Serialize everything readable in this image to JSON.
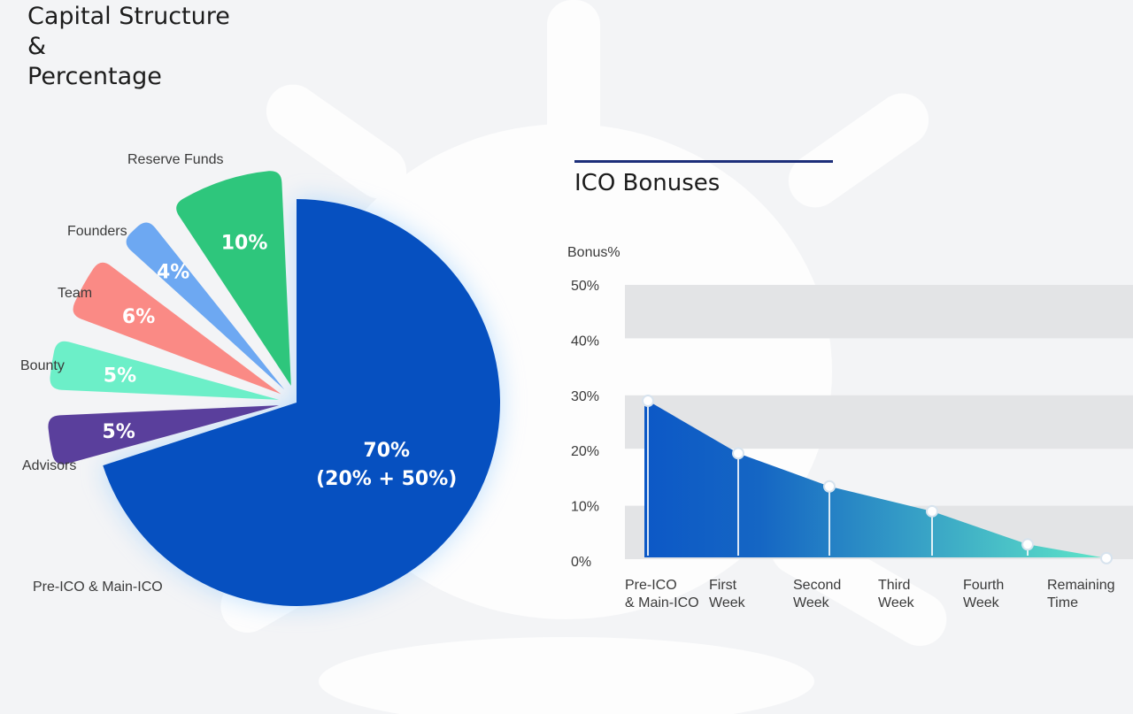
{
  "capital": {
    "title_lines": [
      "Capital Structure",
      "&",
      "Percentage"
    ]
  },
  "ico": {
    "title": "ICO Bonuses"
  },
  "colors": {
    "main_blue": "#0650c0",
    "reserve_green": "#2ec67c",
    "founders_blue": "#6da8f2",
    "team_red": "#fa8a85",
    "bounty_mint": "#6cefc8",
    "advisors_purple": "#5a3f9c",
    "ico_rule": "#1d2f7a",
    "area_start": "#0c58c6",
    "area_end": "#5fe6c8"
  },
  "chart_data": [
    {
      "type": "pie",
      "slices": [
        {
          "label": "Pre-ICO & Main-ICO",
          "value": 70,
          "display": [
            "70%",
            "(20% + 50%)"
          ],
          "color": "#0650c0"
        },
        {
          "label": "Advisors",
          "value": 5,
          "display": [
            "5%"
          ],
          "color": "#5a3f9c"
        },
        {
          "label": "Bounty",
          "value": 5,
          "display": [
            "5%"
          ],
          "color": "#6cefc8"
        },
        {
          "label": "Team",
          "value": 6,
          "display": [
            "6%"
          ],
          "color": "#fa8a85"
        },
        {
          "label": "Founders",
          "value": 4,
          "display": [
            "4%"
          ],
          "color": "#6da8f2"
        },
        {
          "label": "Reserve Funds",
          "value": 10,
          "display": [
            "10%"
          ],
          "color": "#2ec67c"
        }
      ]
    },
    {
      "type": "area",
      "ylabel": "Bonus%",
      "ylim": [
        0,
        50
      ],
      "yticks": [
        "0%",
        "10%",
        "20%",
        "30%",
        "40%",
        "50%"
      ],
      "categories": [
        [
          "Pre-ICO",
          "& Main-ICO"
        ],
        [
          "First",
          "Week"
        ],
        [
          "Second",
          "Week"
        ],
        [
          "Third",
          "Week"
        ],
        [
          "Fourth",
          "Week"
        ],
        [
          "Remaining",
          "Time"
        ]
      ],
      "values": [
        29,
        19.5,
        13.5,
        9,
        3,
        0.5
      ]
    }
  ]
}
